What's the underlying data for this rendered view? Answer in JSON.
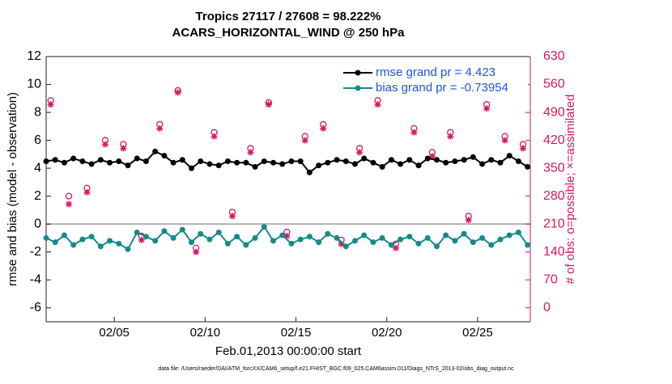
{
  "chart_data": {
    "type": "line",
    "title": "Tropics 27117 / 27608 = 98.222%",
    "subtitle": "ACARS_HORIZONTAL_WIND @ 250 hPa",
    "xlabel": "Feb.01,2013 00:00:00 start",
    "ylabel": "rmse and bias (model - observation)",
    "y2label": "# of obs: o=possible; ×=assimilated",
    "footnote": "data file: /Users/raeder/DAI/ATM_forcXX/CAM6_setup/f.e21.FHIST_BGC.f09_025.CAM6assim.011/Diags_NTrS_2013-02/obs_diag_output.nc",
    "xlim": [
      1.25,
      27.9
    ],
    "xticks": [
      {
        "value": 5,
        "label": "02/05"
      },
      {
        "value": 10,
        "label": "02/10"
      },
      {
        "value": 15,
        "label": "02/15"
      },
      {
        "value": 20,
        "label": "02/20"
      },
      {
        "value": 25,
        "label": "02/25"
      }
    ],
    "ylim": [
      -7,
      12
    ],
    "yticks": [
      -6,
      -4,
      -2,
      0,
      2,
      4,
      6,
      8,
      10,
      12
    ],
    "y2lim": [
      -35,
      630
    ],
    "y2ticks": [
      0,
      70,
      140,
      210,
      280,
      350,
      420,
      490,
      560,
      630
    ],
    "legend": "upper right",
    "x": [
      1.25,
      1.75,
      2.25,
      2.75,
      3.25,
      3.75,
      4.25,
      4.75,
      5.25,
      5.75,
      6.25,
      6.75,
      7.25,
      7.75,
      8.25,
      8.75,
      9.25,
      9.75,
      10.25,
      10.75,
      11.25,
      11.75,
      12.25,
      12.75,
      13.25,
      13.75,
      14.25,
      14.75,
      15.25,
      15.75,
      16.25,
      16.75,
      17.25,
      17.75,
      18.25,
      18.75,
      19.25,
      19.75,
      20.25,
      20.75,
      21.25,
      21.75,
      22.25,
      22.75,
      23.25,
      23.75,
      24.25,
      24.75,
      25.25,
      25.75,
      26.25,
      26.75,
      27.25,
      27.75
    ],
    "series": [
      {
        "name": "rmse grand pr = 4.423",
        "color": "#000000",
        "values": [
          4.5,
          4.6,
          4.4,
          4.7,
          4.5,
          4.3,
          4.6,
          4.4,
          4.5,
          4.2,
          4.7,
          4.5,
          5.2,
          4.9,
          4.4,
          4.6,
          4.0,
          4.5,
          4.3,
          4.2,
          4.5,
          4.4,
          4.4,
          4.1,
          4.5,
          4.4,
          4.3,
          4.5,
          4.5,
          3.7,
          4.2,
          4.4,
          4.6,
          4.5,
          4.3,
          4.7,
          4.4,
          4.1,
          4.6,
          4.3,
          4.6,
          4.2,
          4.7,
          4.6,
          4.4,
          4.5,
          4.6,
          4.8,
          4.3,
          4.6,
          4.4,
          4.9,
          4.5,
          4.1
        ]
      },
      {
        "name": "bias grand pr = -0.73954",
        "color": "#168a8a",
        "values": [
          -1.0,
          -1.3,
          -0.8,
          -1.5,
          -1.1,
          -0.9,
          -1.6,
          -1.2,
          -1.4,
          -1.8,
          -0.6,
          -0.9,
          -1.2,
          -0.5,
          -1.0,
          -0.4,
          -1.3,
          -0.7,
          -1.1,
          -0.6,
          -1.4,
          -0.9,
          -1.5,
          -1.0,
          -0.2,
          -1.2,
          -0.8,
          -1.4,
          -1.1,
          -0.9,
          -1.3,
          -0.7,
          -1.0,
          -1.6,
          -1.2,
          -0.8,
          -1.3,
          -1.0,
          -1.5,
          -1.1,
          -0.9,
          -1.4,
          -1.0,
          -1.6,
          -0.8,
          -1.2,
          -0.7,
          -1.3,
          -1.0,
          -1.5,
          -1.1,
          -0.8,
          -0.6,
          -1.5
        ]
      }
    ],
    "obs_x": [
      1.5,
      2.5,
      3.5,
      4.5,
      5.5,
      6.5,
      7.5,
      8.5,
      9.5,
      10.5,
      11.5,
      12.5,
      13.5,
      14.5,
      15.5,
      16.5,
      17.5,
      18.5,
      19.5,
      20.5,
      21.5,
      22.5,
      23.5,
      24.5,
      25.5,
      26.5,
      27.5
    ],
    "obs_series": [
      {
        "color": "#d6195a",
        "marker": "circle",
        "axis": "y2",
        "values": [
          520,
          280,
          300,
          420,
          410,
          180,
          460,
          545,
          150,
          440,
          240,
          400,
          515,
          190,
          430,
          460,
          170,
          400,
          520,
          160,
          450,
          390,
          440,
          230,
          510,
          430,
          410
        ]
      },
      {
        "color": "#d6195a",
        "marker": "asterisk",
        "axis": "y2",
        "values": [
          510,
          260,
          290,
          410,
          400,
          170,
          450,
          540,
          140,
          430,
          230,
          390,
          510,
          180,
          420,
          450,
          160,
          390,
          510,
          150,
          440,
          380,
          430,
          220,
          500,
          420,
          400
        ]
      }
    ]
  }
}
